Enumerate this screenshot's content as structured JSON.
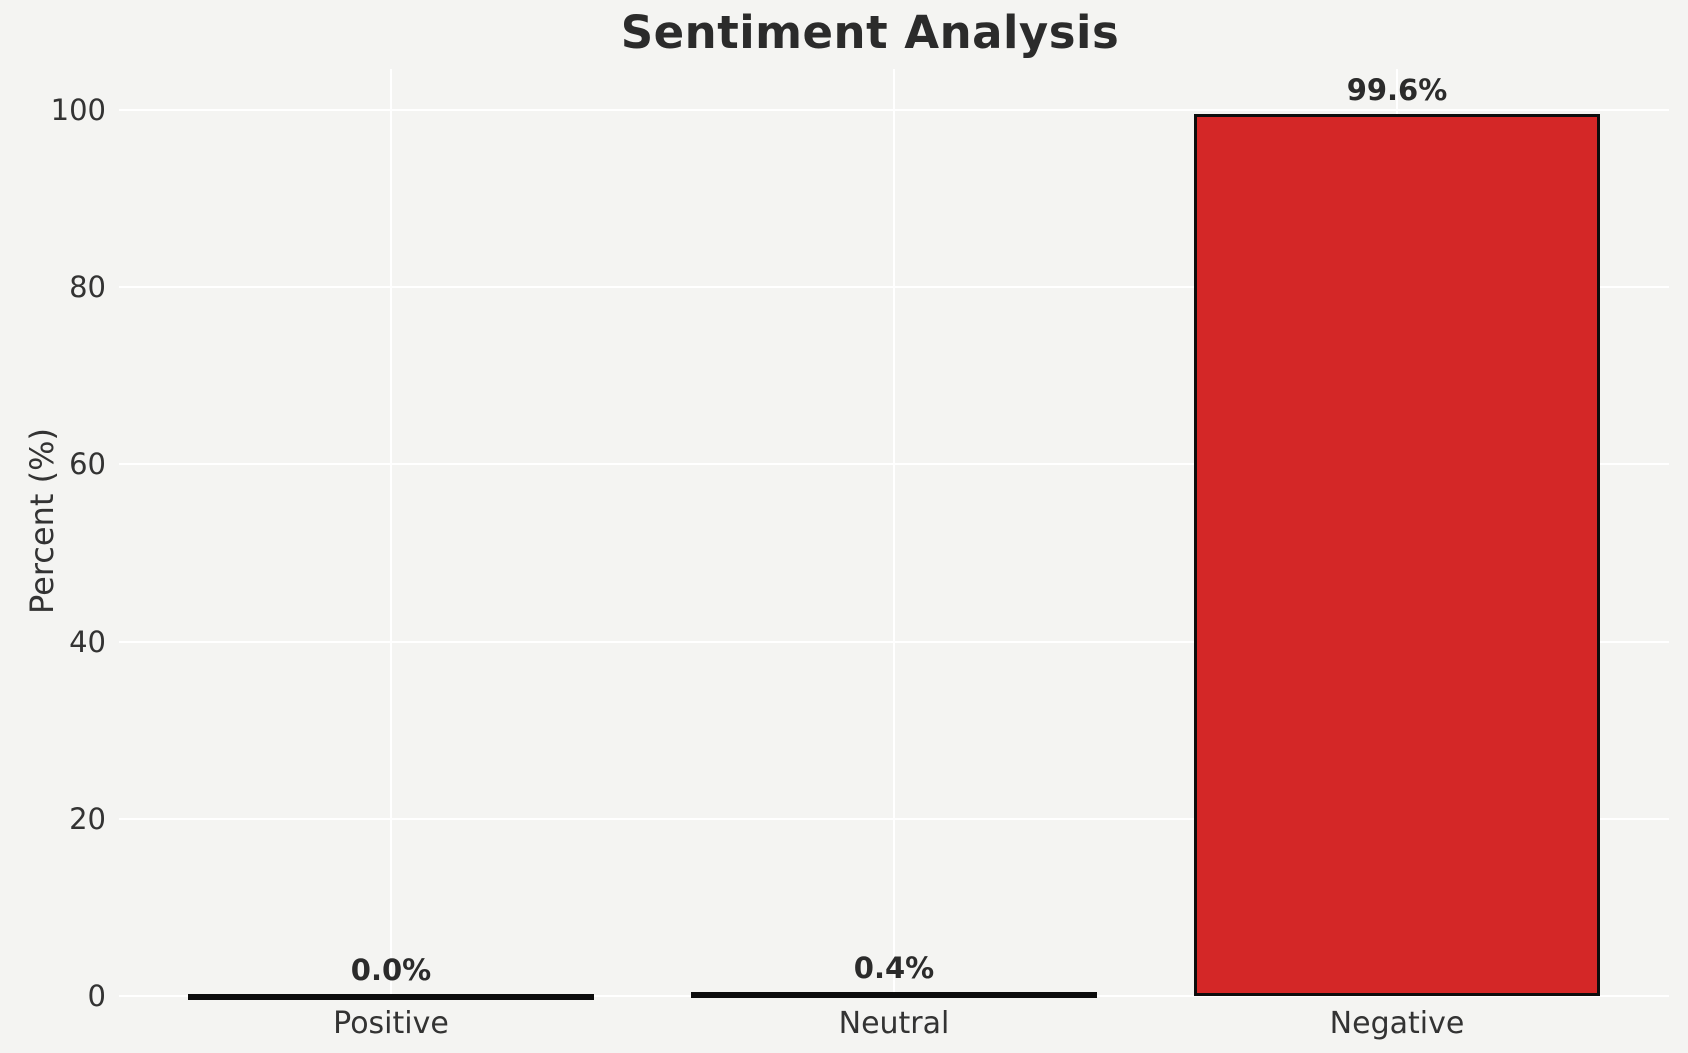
{
  "title": "Sentiment Analysis",
  "chart_data": {
    "type": "bar",
    "title": "Sentiment Analysis",
    "xlabel": "",
    "ylabel": "Percent (%)",
    "categories": [
      "Positive",
      "Neutral",
      "Negative"
    ],
    "values": [
      0.0,
      0.4,
      99.6
    ],
    "value_labels": [
      "0.0%",
      "0.4%",
      "99.6%"
    ],
    "yticks": [
      0,
      20,
      40,
      60,
      80,
      100
    ],
    "ytick_labels": [
      "0",
      "20",
      "40",
      "60",
      "80",
      "100"
    ],
    "ylim": [
      0,
      104.6
    ],
    "grid": "on",
    "legend": "none",
    "colors": {
      "background": "#f4f4f2",
      "gridline": "#ffffff",
      "bar_fill": "#d42727",
      "bar_edge": "#0d0d0d",
      "text": "#2b2b2b",
      "tick_text": "#333333"
    }
  }
}
